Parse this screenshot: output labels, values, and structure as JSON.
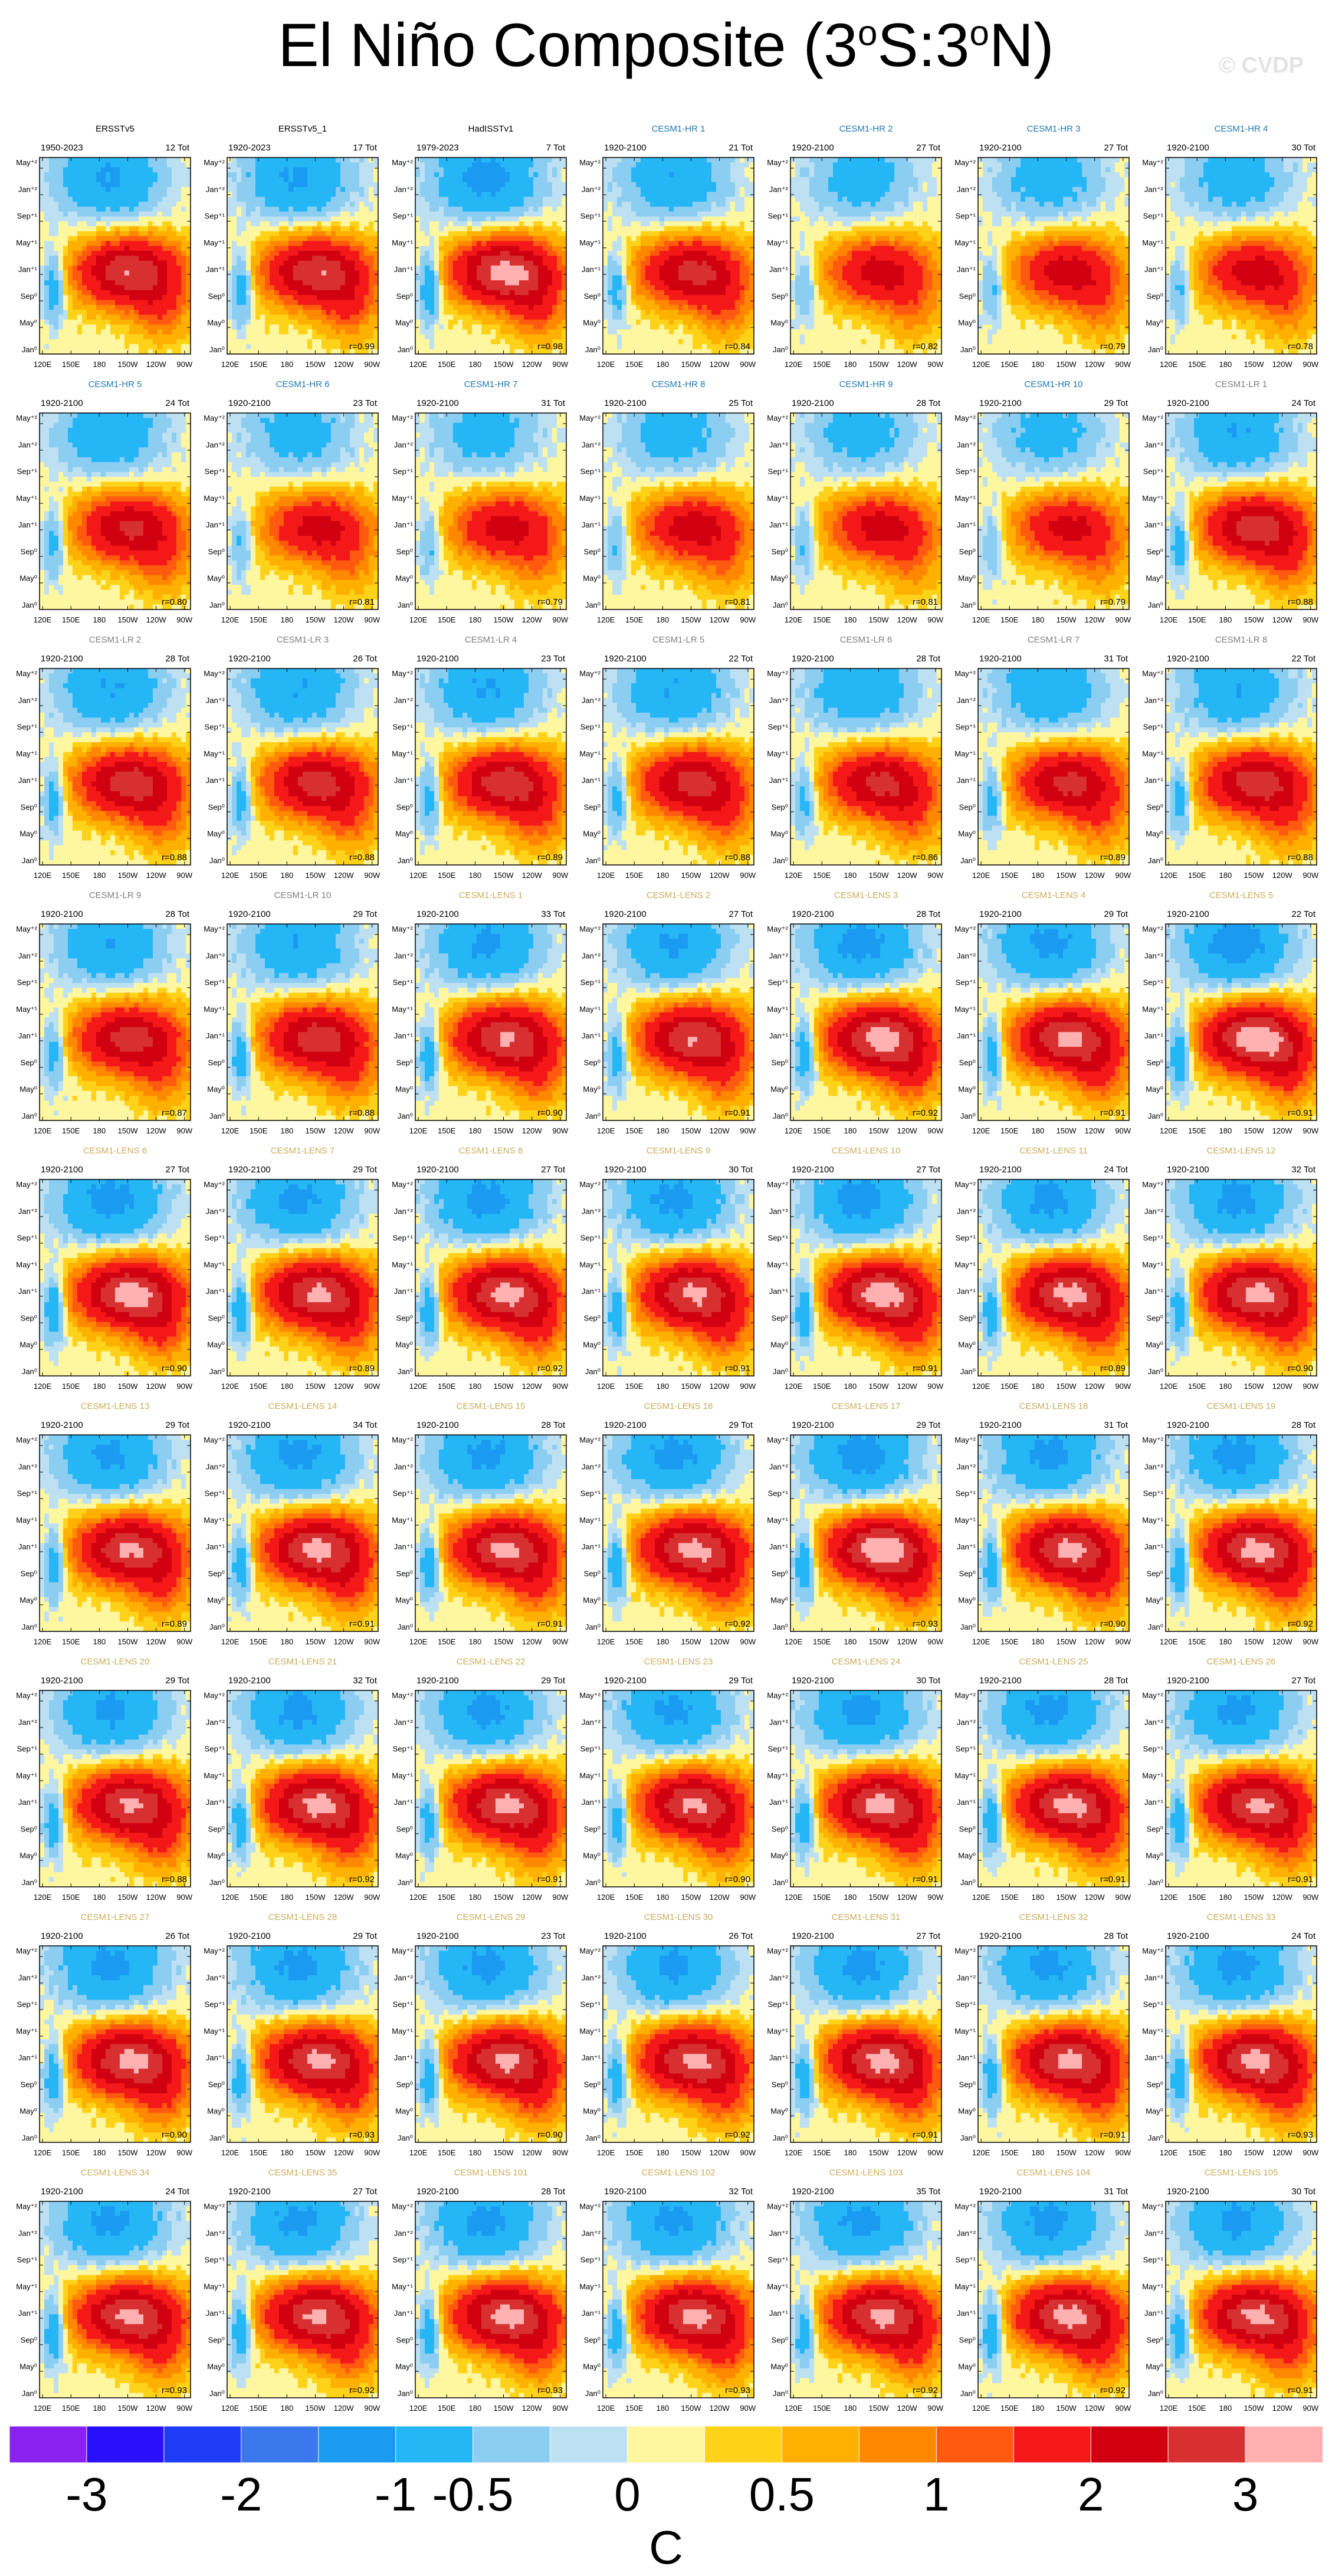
{
  "title": {
    "main": "El Niño Composite (3",
    "sup1": "o",
    "mid": "S:3",
    "sup2": "o",
    "end": "N)"
  },
  "watermark": "© CVDP",
  "ytick_labels": [
    "May⁺²",
    "Jan⁺²",
    "Sep⁺¹",
    "May⁺¹",
    "Jan⁺¹",
    "Sep⁰",
    "May⁰",
    "Jan⁰"
  ],
  "xtick_labels": [
    "120E",
    "150E",
    "180",
    "150W",
    "120W",
    "90W"
  ],
  "chart_data": {
    "type": "heatmap",
    "title": "El Niño Composite (3oS:3oN)",
    "x_axis": {
      "ticks": [
        "120E",
        "150E",
        "180",
        "150W",
        "120W",
        "90W"
      ]
    },
    "y_axis": {
      "ticks": [
        "Jan⁰",
        "May⁰",
        "Sep⁰",
        "Jan⁺¹",
        "May⁺¹",
        "Sep⁺¹",
        "Jan⁺²",
        "May⁺²"
      ]
    },
    "colorbar": {
      "unit": "C",
      "labels": [
        "-3",
        "-2",
        "-1",
        "-0.5",
        "0",
        "0.5",
        "1",
        "2",
        "3"
      ],
      "colors": [
        "#8a22f0",
        "#2a10f8",
        "#1e3cf5",
        "#3a78ee",
        "#1a9af0",
        "#25b7f5",
        "#8ccdf2",
        "#bde1f3",
        "#fff6a0",
        "#ffd21a",
        "#ffb000",
        "#ff8800",
        "#ff5a10",
        "#f51818",
        "#d00010",
        "#d83030",
        "#ffb0b0"
      ]
    },
    "panels": [
      {
        "name": "ERSSTv5",
        "period": "1950-2023",
        "tot": "12 Tot",
        "r": "",
        "cls": "obs",
        "int": 0.85
      },
      {
        "name": "ERSSTv5_1",
        "period": "1920-2023",
        "tot": "17 Tot",
        "r": "r=0.99",
        "cls": "obs",
        "int": 0.85
      },
      {
        "name": "HadISSTv1",
        "period": "1979-2023",
        "tot": "7 Tot",
        "r": "r=0.98",
        "cls": "obs",
        "int": 0.95
      },
      {
        "name": "CESM1-HR 1",
        "period": "1920-2100",
        "tot": "21 Tot",
        "r": "r=0.84",
        "cls": "hr",
        "int": 0.75
      },
      {
        "name": "CESM1-HR 2",
        "period": "1920-2100",
        "tot": "27 Tot",
        "r": "r=0.82",
        "cls": "hr",
        "int": 0.6
      },
      {
        "name": "CESM1-HR 3",
        "period": "1920-2100",
        "tot": "27 Tot",
        "r": "r=0.79",
        "cls": "hr",
        "int": 0.62
      },
      {
        "name": "CESM1-HR 4",
        "period": "1920-2100",
        "tot": "30 Tot",
        "r": "r=0.78",
        "cls": "hr",
        "int": 0.62
      },
      {
        "name": "CESM1-HR 5",
        "period": "1920-2100",
        "tot": "24 Tot",
        "r": "r=0.80",
        "cls": "hr",
        "int": 0.72
      },
      {
        "name": "CESM1-HR 6",
        "period": "1920-2100",
        "tot": "23 Tot",
        "r": "r=0.81",
        "cls": "hr",
        "int": 0.6
      },
      {
        "name": "CESM1-HR 7",
        "period": "1920-2100",
        "tot": "31 Tot",
        "r": "r=0.79",
        "cls": "hr",
        "int": 0.6
      },
      {
        "name": "CESM1-HR 8",
        "period": "1920-2100",
        "tot": "25 Tot",
        "r": "r=0.81",
        "cls": "hr",
        "int": 0.62
      },
      {
        "name": "CESM1-HR 9",
        "period": "1920-2100",
        "tot": "28 Tot",
        "r": "r=0.81",
        "cls": "hr",
        "int": 0.6
      },
      {
        "name": "CESM1-HR 10",
        "period": "1920-2100",
        "tot": "29 Tot",
        "r": "r=0.79",
        "cls": "hr",
        "int": 0.58
      },
      {
        "name": "CESM1-LR 1",
        "period": "1920-2100",
        "tot": "24 Tot",
        "r": "r=0.88",
        "cls": "lr",
        "int": 0.8
      },
      {
        "name": "CESM1-LR 2",
        "period": "1920-2100",
        "tot": "28 Tot",
        "r": "r=0.88",
        "cls": "lr",
        "int": 0.8
      },
      {
        "name": "CESM1-LR 3",
        "period": "1920-2100",
        "tot": "26 Tot",
        "r": "r=0.88",
        "cls": "lr",
        "int": 0.78
      },
      {
        "name": "CESM1-LR 4",
        "period": "1920-2100",
        "tot": "23 Tot",
        "r": "r=0.89",
        "cls": "lr",
        "int": 0.82
      },
      {
        "name": "CESM1-LR 5",
        "period": "1920-2100",
        "tot": "22 Tot",
        "r": "r=0.88",
        "cls": "lr",
        "int": 0.78
      },
      {
        "name": "CESM1-LR 6",
        "period": "1920-2100",
        "tot": "28 Tot",
        "r": "r=0.86",
        "cls": "lr",
        "int": 0.75
      },
      {
        "name": "CESM1-LR 7",
        "period": "1920-2100",
        "tot": "31 Tot",
        "r": "r=0.89",
        "cls": "lr",
        "int": 0.75
      },
      {
        "name": "CESM1-LR 8",
        "period": "1920-2100",
        "tot": "22 Tot",
        "r": "r=0.88",
        "cls": "lr",
        "int": 0.8
      },
      {
        "name": "CESM1-LR 9",
        "period": "1920-2100",
        "tot": "28 Tot",
        "r": "r=0.87",
        "cls": "lr",
        "int": 0.78
      },
      {
        "name": "CESM1-LR 10",
        "period": "1920-2100",
        "tot": "29 Tot",
        "r": "r=0.88",
        "cls": "lr",
        "int": 0.8
      },
      {
        "name": "CESM1-LENS 1",
        "period": "1920-2100",
        "tot": "33 Tot",
        "r": "r=0.90",
        "cls": "lens",
        "int": 0.88
      },
      {
        "name": "CESM1-LENS 2",
        "period": "1920-2100",
        "tot": "27 Tot",
        "r": "r=0.91",
        "cls": "lens",
        "int": 0.86
      },
      {
        "name": "CESM1-LENS 3",
        "period": "1920-2100",
        "tot": "28 Tot",
        "r": "r=0.92",
        "cls": "lens",
        "int": 0.95
      },
      {
        "name": "CESM1-LENS 4",
        "period": "1920-2100",
        "tot": "29 Tot",
        "r": "r=0.91",
        "cls": "lens",
        "int": 0.9
      },
      {
        "name": "CESM1-LENS 5",
        "period": "1920-2100",
        "tot": "22 Tot",
        "r": "r=0.91",
        "cls": "lens",
        "int": 1.0
      },
      {
        "name": "CESM1-LENS 6",
        "period": "1920-2100",
        "tot": "27 Tot",
        "r": "r=0.90",
        "cls": "lens",
        "int": 0.95
      },
      {
        "name": "CESM1-LENS 7",
        "period": "1920-2100",
        "tot": "29 Tot",
        "r": "r=0.89",
        "cls": "lens",
        "int": 0.9
      },
      {
        "name": "CESM1-LENS 8",
        "period": "1920-2100",
        "tot": "27 Tot",
        "r": "r=0.92",
        "cls": "lens",
        "int": 0.92
      },
      {
        "name": "CESM1-LENS 9",
        "period": "1920-2100",
        "tot": "30 Tot",
        "r": "r=0.91",
        "cls": "lens",
        "int": 0.9
      },
      {
        "name": "CESM1-LENS 10",
        "period": "1920-2100",
        "tot": "27 Tot",
        "r": "r=0.91",
        "cls": "lens",
        "int": 0.95
      },
      {
        "name": "CESM1-LENS 11",
        "period": "1920-2100",
        "tot": "24 Tot",
        "r": "r=0.89",
        "cls": "lens",
        "int": 0.92
      },
      {
        "name": "CESM1-LENS 12",
        "period": "1920-2100",
        "tot": "32 Tot",
        "r": "r=0.90",
        "cls": "lens",
        "int": 0.92
      },
      {
        "name": "CESM1-LENS 13",
        "period": "1920-2100",
        "tot": "29 Tot",
        "r": "r=0.89",
        "cls": "lens",
        "int": 0.88
      },
      {
        "name": "CESM1-LENS 14",
        "period": "1920-2100",
        "tot": "34 Tot",
        "r": "r=0.91",
        "cls": "lens",
        "int": 0.92
      },
      {
        "name": "CESM1-LENS 15",
        "period": "1920-2100",
        "tot": "28 Tot",
        "r": "r=0.91",
        "cls": "lens",
        "int": 0.9
      },
      {
        "name": "CESM1-LENS 16",
        "period": "1920-2100",
        "tot": "29 Tot",
        "r": "r=0.92",
        "cls": "lens",
        "int": 0.92
      },
      {
        "name": "CESM1-LENS 17",
        "period": "1920-2100",
        "tot": "29 Tot",
        "r": "r=0.93",
        "cls": "lens",
        "int": 0.98
      },
      {
        "name": "CESM1-LENS 18",
        "period": "1920-2100",
        "tot": "31 Tot",
        "r": "r=0.90",
        "cls": "lens",
        "int": 0.9
      },
      {
        "name": "CESM1-LENS 19",
        "period": "1920-2100",
        "tot": "28 Tot",
        "r": "r=0.92",
        "cls": "lens",
        "int": 0.92
      },
      {
        "name": "CESM1-LENS 20",
        "period": "1920-2100",
        "tot": "29 Tot",
        "r": "r=0.88",
        "cls": "lens",
        "int": 0.88
      },
      {
        "name": "CESM1-LENS 21",
        "period": "1920-2100",
        "tot": "32 Tot",
        "r": "r=0.92",
        "cls": "lens",
        "int": 0.92
      },
      {
        "name": "CESM1-LENS 22",
        "period": "1920-2100",
        "tot": "29 Tot",
        "r": "r=0.91",
        "cls": "lens",
        "int": 0.9
      },
      {
        "name": "CESM1-LENS 23",
        "period": "1920-2100",
        "tot": "29 Tot",
        "r": "r=0.90",
        "cls": "lens",
        "int": 0.88
      },
      {
        "name": "CESM1-LENS 24",
        "period": "1920-2100",
        "tot": "30 Tot",
        "r": "r=0.91",
        "cls": "lens",
        "int": 0.92
      },
      {
        "name": "CESM1-LENS 25",
        "period": "1920-2100",
        "tot": "28 Tot",
        "r": "r=0.91",
        "cls": "lens",
        "int": 0.92
      },
      {
        "name": "CESM1-LENS 26",
        "period": "1920-2100",
        "tot": "27 Tot",
        "r": "r=0.91",
        "cls": "lens",
        "int": 0.9
      },
      {
        "name": "CESM1-LENS 27",
        "period": "1920-2100",
        "tot": "26 Tot",
        "r": "r=0.90",
        "cls": "lens",
        "int": 0.92
      },
      {
        "name": "CESM1-LENS 28",
        "period": "1920-2100",
        "tot": "29 Tot",
        "r": "r=0.93",
        "cls": "lens",
        "int": 0.9
      },
      {
        "name": "CESM1-LENS 29",
        "period": "1920-2100",
        "tot": "23 Tot",
        "r": "r=0.90",
        "cls": "lens",
        "int": 0.9
      },
      {
        "name": "CESM1-LENS 30",
        "period": "1920-2100",
        "tot": "26 Tot",
        "r": "r=0.92",
        "cls": "lens",
        "int": 0.9
      },
      {
        "name": "CESM1-LENS 31",
        "period": "1920-2100",
        "tot": "27 Tot",
        "r": "r=0.91",
        "cls": "lens",
        "int": 0.92
      },
      {
        "name": "CESM1-LENS 32",
        "period": "1920-2100",
        "tot": "28 Tot",
        "r": "r=0.91",
        "cls": "lens",
        "int": 0.9
      },
      {
        "name": "CESM1-LENS 33",
        "period": "1920-2100",
        "tot": "24 Tot",
        "r": "r=0.93",
        "cls": "lens",
        "int": 0.92
      },
      {
        "name": "CESM1-LENS 34",
        "period": "1920-2100",
        "tot": "24 Tot",
        "r": "r=0.93",
        "cls": "lens",
        "int": 0.9
      },
      {
        "name": "CESM1-LENS 35",
        "period": "1920-2100",
        "tot": "27 Tot",
        "r": "r=0.92",
        "cls": "lens",
        "int": 0.9
      },
      {
        "name": "CESM1-LENS 101",
        "period": "1920-2100",
        "tot": "28 Tot",
        "r": "r=0.93",
        "cls": "lens",
        "int": 0.92
      },
      {
        "name": "CESM1-LENS 102",
        "period": "1920-2100",
        "tot": "32 Tot",
        "r": "r=0.93",
        "cls": "lens",
        "int": 0.9
      },
      {
        "name": "CESM1-LENS 103",
        "period": "1920-2100",
        "tot": "35 Tot",
        "r": "r=0.92",
        "cls": "lens",
        "int": 0.9
      },
      {
        "name": "CESM1-LENS 104",
        "period": "1920-2100",
        "tot": "31 Tot",
        "r": "r=0.92",
        "cls": "lens",
        "int": 0.92
      },
      {
        "name": "CESM1-LENS 105",
        "period": "1920-2100",
        "tot": "30 Tot",
        "r": "r=0.91",
        "cls": "lens",
        "int": 0.9
      }
    ]
  },
  "title_colors": {
    "obs": "#000000",
    "hr": "#2078b4",
    "lr": "#7f7f7f",
    "lens": "#c8ad5a"
  }
}
